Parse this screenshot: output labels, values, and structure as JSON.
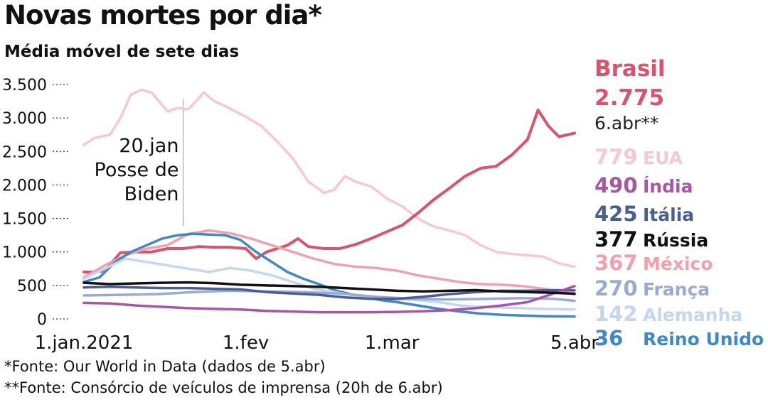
{
  "title": "Novas mortes por dia*",
  "subtitle": "Média móvel de sete dias",
  "sources": [
    "*Fonte: Our World in Data (dados de 5.abr)",
    "**Fonte: Consórcio de veículos de imprensa (20h de 6.abr)"
  ],
  "chart_data": {
    "type": "line",
    "title": "Novas mortes por dia*",
    "subtitle": "Média móvel de sete dias",
    "x_range": [
      "2021-01-01",
      "2021-04-05"
    ],
    "ylim": [
      0,
      3500
    ],
    "yticks": [
      0,
      500,
      1000,
      1500,
      2000,
      2500,
      3000,
      3500
    ],
    "ytick_labels": [
      "0",
      "500",
      "1.000",
      "1.500",
      "2.000",
      "2.500",
      "3.000",
      "3.500"
    ],
    "xticks": [
      {
        "date": "2021-01-01",
        "label": "1.jan.2021"
      },
      {
        "date": "2021-02-01",
        "label": "1.fev"
      },
      {
        "date": "2021-03-01",
        "label": "1.mar"
      },
      {
        "date": "2021-04-05",
        "label": "5.abr"
      }
    ],
    "grid": false,
    "annotation": {
      "date": "2021-01-20",
      "lines": [
        "20.jan",
        "Posse de",
        "Biden"
      ]
    },
    "highlight": {
      "name": "Brasil",
      "value_label": "2.775",
      "date_label": "6.abr**",
      "color": "#d9536a"
    },
    "legend": [
      {
        "name": "EUA",
        "value_label": "779",
        "color": "#f7c9cf"
      },
      {
        "name": "Índia",
        "value_label": "490",
        "color": "#a855a8"
      },
      {
        "name": "Itália",
        "value_label": "425",
        "color": "#4a5e96"
      },
      {
        "name": "Rússia",
        "value_label": "377",
        "color": "#111111"
      },
      {
        "name": "México",
        "value_label": "367",
        "color": "#f2a0ac"
      },
      {
        "name": "França",
        "value_label": "270",
        "color": "#9aaad6"
      },
      {
        "name": "Alemanha",
        "value_label": "142",
        "color": "#c5d7ef"
      },
      {
        "name": "Reino Unido",
        "value_label": "36",
        "color": "#3f89c8"
      }
    ],
    "series": [
      {
        "name": "EUA",
        "color": "#f7c9cf",
        "x": [
          "2021-01-01",
          "2021-01-03",
          "2021-01-06",
          "2021-01-08",
          "2021-01-10",
          "2021-01-12",
          "2021-01-14",
          "2021-01-17",
          "2021-01-19",
          "2021-01-21",
          "2021-01-24",
          "2021-01-26",
          "2021-01-28",
          "2021-01-30",
          "2021-02-01",
          "2021-02-04",
          "2021-02-07",
          "2021-02-10",
          "2021-02-13",
          "2021-02-16",
          "2021-02-18",
          "2021-02-20",
          "2021-02-22",
          "2021-02-25",
          "2021-02-28",
          "2021-03-03",
          "2021-03-06",
          "2021-03-09",
          "2021-03-12",
          "2021-03-15",
          "2021-03-18",
          "2021-03-21",
          "2021-03-24",
          "2021-03-27",
          "2021-03-30",
          "2021-04-02",
          "2021-04-05"
        ],
        "values": [
          2600,
          2700,
          2750,
          3000,
          3350,
          3420,
          3380,
          3100,
          3150,
          3130,
          3380,
          3250,
          3180,
          3100,
          3020,
          2880,
          2650,
          2400,
          2050,
          1880,
          1930,
          2130,
          2050,
          1980,
          1800,
          1680,
          1500,
          1380,
          1320,
          1250,
          1100,
          1000,
          970,
          950,
          930,
          830,
          779
        ]
      },
      {
        "name": "Brasil",
        "color": "#d9536a",
        "x": [
          "2021-01-01",
          "2021-01-03",
          "2021-01-05",
          "2021-01-08",
          "2021-01-11",
          "2021-01-14",
          "2021-01-17",
          "2021-01-20",
          "2021-01-23",
          "2021-01-26",
          "2021-01-29",
          "2021-02-01",
          "2021-02-03",
          "2021-02-05",
          "2021-02-07",
          "2021-02-09",
          "2021-02-11",
          "2021-02-13",
          "2021-02-16",
          "2021-02-19",
          "2021-02-22",
          "2021-02-25",
          "2021-02-28",
          "2021-03-03",
          "2021-03-06",
          "2021-03-09",
          "2021-03-12",
          "2021-03-15",
          "2021-03-18",
          "2021-03-21",
          "2021-03-24",
          "2021-03-27",
          "2021-03-29",
          "2021-03-31",
          "2021-04-02",
          "2021-04-05"
        ],
        "values": [
          700,
          700,
          720,
          990,
          1000,
          1000,
          1050,
          1050,
          1080,
          1070,
          1070,
          1050,
          900,
          1000,
          1050,
          1100,
          1200,
          1080,
          1050,
          1050,
          1110,
          1200,
          1300,
          1400,
          1580,
          1780,
          1950,
          2130,
          2250,
          2280,
          2450,
          2680,
          3120,
          2880,
          2720,
          2775
        ]
      },
      {
        "name": "México",
        "color": "#f2a0ac",
        "x": [
          "2021-01-01",
          "2021-01-05",
          "2021-01-09",
          "2021-01-13",
          "2021-01-17",
          "2021-01-21",
          "2021-01-25",
          "2021-01-29",
          "2021-02-02",
          "2021-02-06",
          "2021-02-10",
          "2021-02-14",
          "2021-02-18",
          "2021-02-22",
          "2021-02-26",
          "2021-03-02",
          "2021-03-06",
          "2021-03-10",
          "2021-03-14",
          "2021-03-18",
          "2021-03-22",
          "2021-03-26",
          "2021-03-30",
          "2021-04-05"
        ],
        "values": [
          620,
          800,
          950,
          1050,
          1100,
          1270,
          1320,
          1280,
          1200,
          1100,
          1000,
          900,
          820,
          780,
          760,
          720,
          650,
          600,
          550,
          520,
          510,
          490,
          450,
          367
        ]
      },
      {
        "name": "Reino Unido",
        "color": "#3f89c8",
        "x": [
          "2021-01-01",
          "2021-01-04",
          "2021-01-07",
          "2021-01-10",
          "2021-01-13",
          "2021-01-16",
          "2021-01-19",
          "2021-01-22",
          "2021-01-25",
          "2021-01-28",
          "2021-01-31",
          "2021-02-03",
          "2021-02-06",
          "2021-02-09",
          "2021-02-12",
          "2021-02-15",
          "2021-02-18",
          "2021-02-21",
          "2021-02-24",
          "2021-02-27",
          "2021-03-02",
          "2021-03-06",
          "2021-03-10",
          "2021-03-14",
          "2021-03-18",
          "2021-03-22",
          "2021-03-26",
          "2021-03-30",
          "2021-04-05"
        ],
        "values": [
          550,
          620,
          850,
          1000,
          1100,
          1200,
          1250,
          1270,
          1260,
          1250,
          1180,
          1000,
          850,
          700,
          600,
          520,
          430,
          370,
          320,
          280,
          250,
          200,
          150,
          110,
          80,
          60,
          50,
          40,
          36
        ]
      },
      {
        "name": "Alemanha",
        "color": "#c5d7ef",
        "x": [
          "2021-01-01",
          "2021-01-05",
          "2021-01-09",
          "2021-01-13",
          "2021-01-17",
          "2021-01-21",
          "2021-01-25",
          "2021-01-29",
          "2021-02-02",
          "2021-02-06",
          "2021-02-10",
          "2021-02-14",
          "2021-02-18",
          "2021-02-22",
          "2021-02-26",
          "2021-03-02",
          "2021-03-06",
          "2021-03-10",
          "2021-03-14",
          "2021-03-18",
          "2021-03-22",
          "2021-03-26",
          "2021-03-30",
          "2021-04-05"
        ],
        "values": [
          600,
          750,
          900,
          850,
          800,
          750,
          700,
          760,
          720,
          650,
          550,
          450,
          400,
          350,
          320,
          300,
          280,
          250,
          200,
          180,
          170,
          160,
          150,
          142
        ]
      },
      {
        "name": "França",
        "color": "#9aaad6",
        "x": [
          "2021-01-01",
          "2021-01-08",
          "2021-01-15",
          "2021-01-22",
          "2021-01-29",
          "2021-02-05",
          "2021-02-12",
          "2021-02-19",
          "2021-02-26",
          "2021-03-05",
          "2021-03-12",
          "2021-03-19",
          "2021-03-26",
          "2021-04-01",
          "2021-04-05"
        ],
        "values": [
          350,
          360,
          370,
          400,
          420,
          410,
          400,
          380,
          330,
          300,
          290,
          300,
          310,
          300,
          270
        ]
      },
      {
        "name": "Itália",
        "color": "#4a5e96",
        "x": [
          "2021-01-01",
          "2021-01-06",
          "2021-01-11",
          "2021-01-16",
          "2021-01-21",
          "2021-01-26",
          "2021-01-31",
          "2021-02-05",
          "2021-02-10",
          "2021-02-15",
          "2021-02-20",
          "2021-02-25",
          "2021-03-02",
          "2021-03-07",
          "2021-03-12",
          "2021-03-17",
          "2021-03-22",
          "2021-03-27",
          "2021-04-01",
          "2021-04-05"
        ],
        "values": [
          470,
          480,
          470,
          460,
          460,
          450,
          440,
          400,
          380,
          360,
          320,
          300,
          300,
          330,
          370,
          400,
          420,
          420,
          430,
          425
        ]
      },
      {
        "name": "Índia",
        "color": "#a855a8",
        "x": [
          "2021-01-01",
          "2021-01-06",
          "2021-01-11",
          "2021-01-16",
          "2021-01-21",
          "2021-01-26",
          "2021-01-31",
          "2021-02-05",
          "2021-02-10",
          "2021-02-15",
          "2021-02-20",
          "2021-02-25",
          "2021-03-02",
          "2021-03-07",
          "2021-03-12",
          "2021-03-17",
          "2021-03-22",
          "2021-03-27",
          "2021-04-01",
          "2021-04-05"
        ],
        "values": [
          240,
          230,
          200,
          180,
          160,
          150,
          140,
          120,
          110,
          100,
          100,
          100,
          105,
          115,
          130,
          160,
          200,
          250,
          380,
          490
        ]
      },
      {
        "name": "Rússia",
        "color": "#111111",
        "x": [
          "2021-01-01",
          "2021-01-06",
          "2021-01-11",
          "2021-01-16",
          "2021-01-21",
          "2021-01-26",
          "2021-01-31",
          "2021-02-05",
          "2021-02-10",
          "2021-02-15",
          "2021-02-20",
          "2021-02-25",
          "2021-03-02",
          "2021-03-07",
          "2021-03-12",
          "2021-03-17",
          "2021-03-22",
          "2021-03-27",
          "2021-04-01",
          "2021-04-05"
        ],
        "values": [
          540,
          520,
          530,
          540,
          545,
          535,
          510,
          500,
          490,
          480,
          460,
          440,
          420,
          410,
          420,
          430,
          410,
          400,
          390,
          377
        ]
      }
    ]
  }
}
